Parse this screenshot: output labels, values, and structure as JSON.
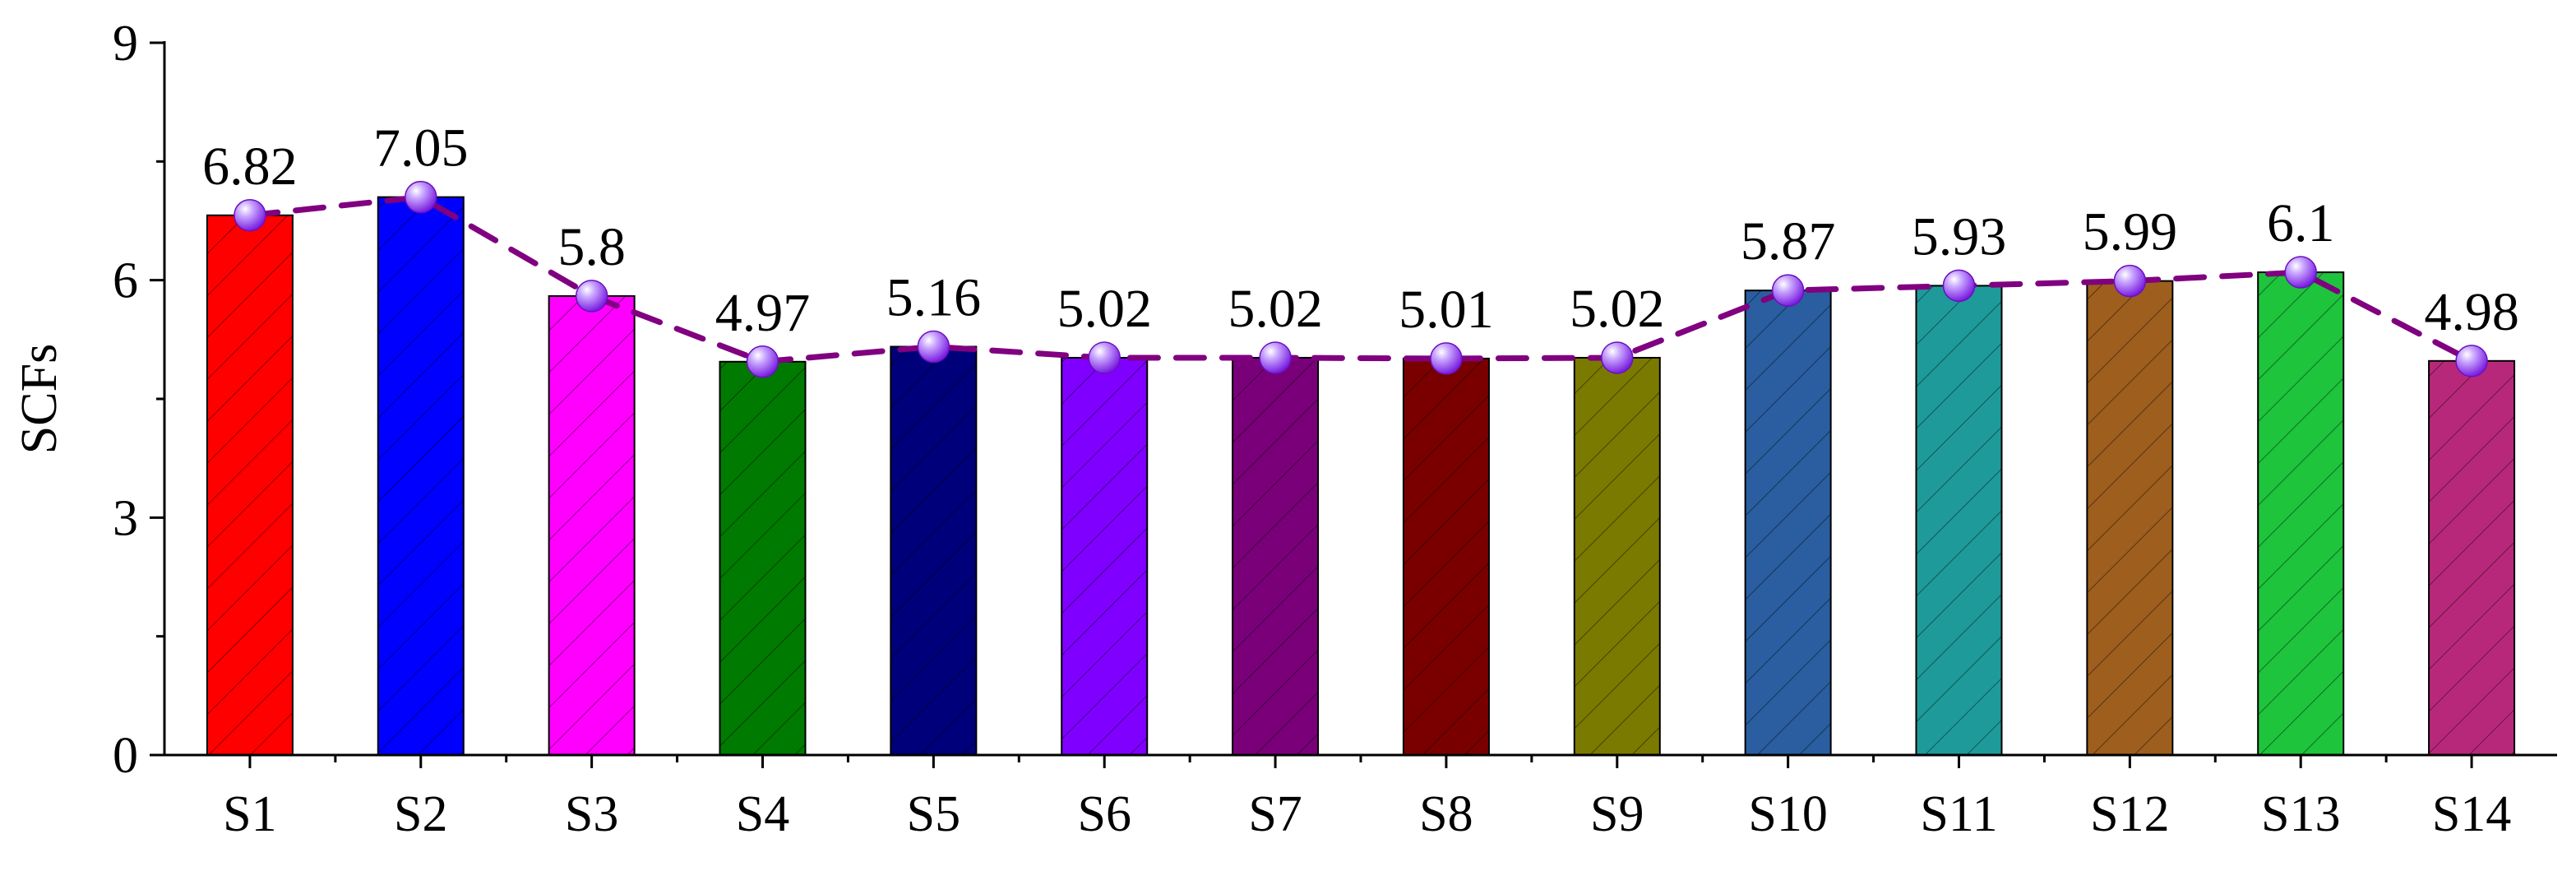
{
  "chart_data": {
    "type": "bar",
    "categories": [
      "S1",
      "S2",
      "S3",
      "S4",
      "S5",
      "S6",
      "S7",
      "S8",
      "S9",
      "S10",
      "S11",
      "S12",
      "S13",
      "S14"
    ],
    "values": [
      6.82,
      7.05,
      5.8,
      4.97,
      5.16,
      5.02,
      5.02,
      5.01,
      5.02,
      5.87,
      5.93,
      5.99,
      6.1,
      4.98
    ],
    "data_labels": [
      "6.82",
      "7.05",
      "5.8",
      "4.97",
      "5.16",
      "5.02",
      "5.02",
      "5.01",
      "5.02",
      "5.87",
      "5.93",
      "5.99",
      "6.1",
      "4.98"
    ],
    "bar_colors": [
      "#ff0000",
      "#0000ff",
      "#ff00ff",
      "#007a00",
      "#00007a",
      "#8000ff",
      "#7a007a",
      "#7a0000",
      "#7a7a00",
      "#2a5ea0",
      "#1f9a9a",
      "#9e5e1e",
      "#1ec43c",
      "#b8287a"
    ],
    "overlay": {
      "type": "line",
      "style": "dashed",
      "line_color": "#800080",
      "marker": "sphere",
      "marker_color": "#9b4dff"
    },
    "hatch": "diagonal",
    "xlabel": "",
    "ylabel": "SCFs",
    "ylim": [
      0,
      9
    ],
    "yticks": [
      "0",
      "3",
      "6",
      "9"
    ],
    "grid": false,
    "legend": "none"
  }
}
